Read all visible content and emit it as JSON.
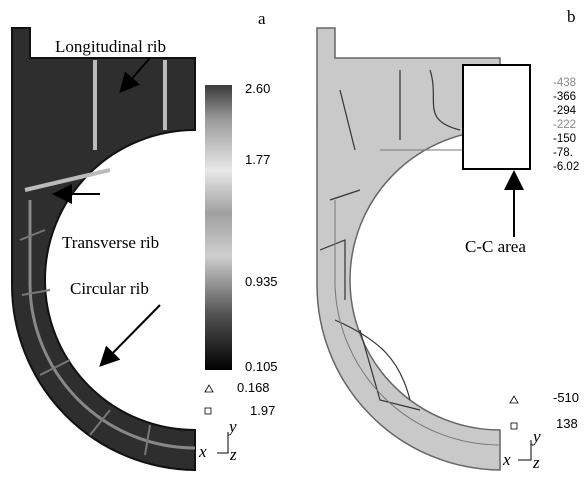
{
  "panel_a": {
    "label": "a",
    "annotations": [
      "Longitudinal rib",
      "Transverse rib",
      "Circular rib"
    ],
    "colorbar_labels": [
      "2.60",
      "1.77",
      "0.935",
      "0.105"
    ],
    "extremes": [
      "0.168",
      "1.97"
    ],
    "axes": [
      "x",
      "y",
      "z"
    ]
  },
  "panel_b": {
    "label": "b",
    "contour_labels": [
      "-438",
      "-366",
      "-294",
      "-222",
      "-150",
      "-78.",
      "-6.02"
    ],
    "annotation": "C-C area",
    "extremes": [
      "-510",
      "138"
    ],
    "axes": [
      "x",
      "y",
      "z"
    ]
  }
}
